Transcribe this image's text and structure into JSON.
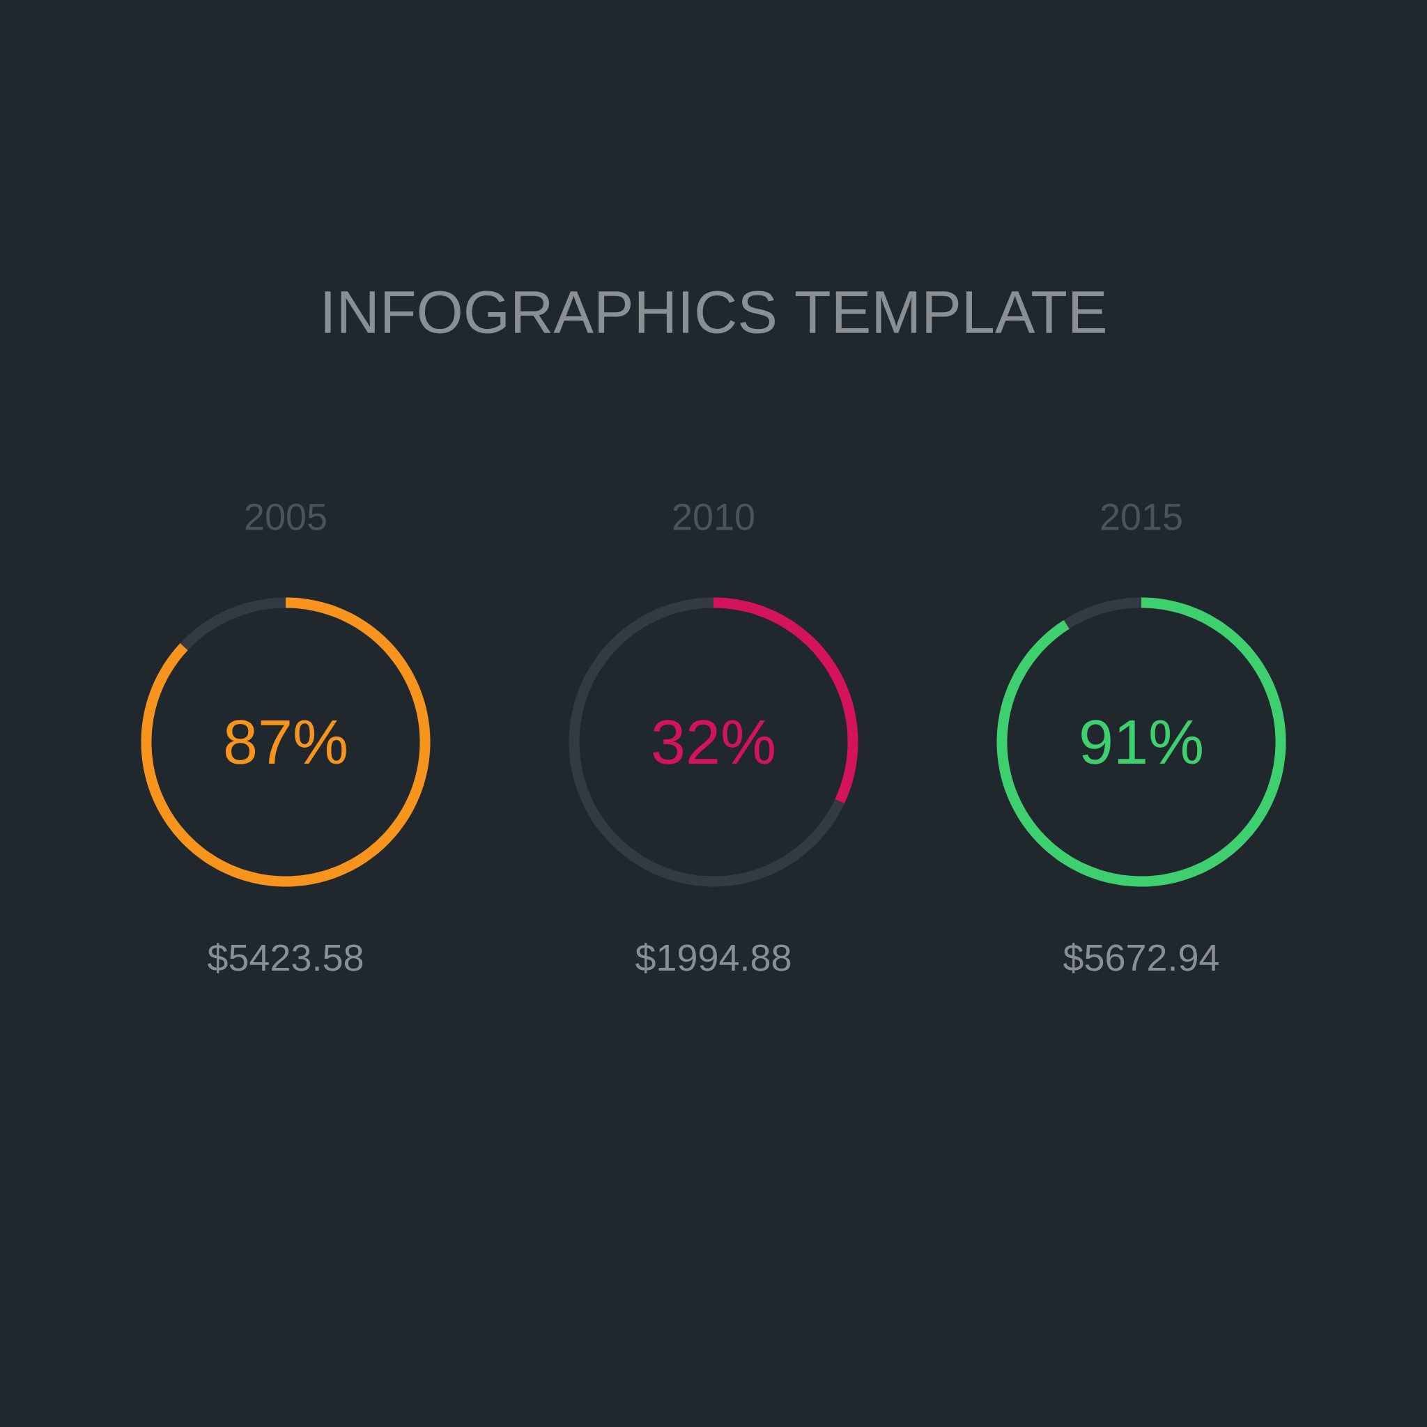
{
  "chart_data": [
    {
      "type": "other",
      "title": "INFOGRAPHICS   TEMPLATE"
    },
    {
      "type": "donut",
      "title": "2005",
      "categories": [
        null,
        null
      ],
      "values": [
        87,
        13
      ],
      "colors": [
        "#f7941d",
        "#343a42"
      ],
      "value_labels": [
        "87%",
        null
      ],
      "annotations": [
        "$5423.58"
      ]
    },
    {
      "type": "donut",
      "title": "2010",
      "categories": [
        null,
        null
      ],
      "values": [
        32,
        68
      ],
      "colors": [
        "#d4145a",
        "#343a42"
      ],
      "value_labels": [
        "32%",
        null
      ],
      "annotations": [
        "$1994.88"
      ]
    },
    {
      "type": "donut",
      "title": "2015",
      "categories": [
        null,
        null
      ],
      "values": [
        91,
        9
      ],
      "colors": [
        "#3ecf6e",
        "#343a42"
      ],
      "value_labels": [
        "91%",
        null
      ],
      "annotations": [
        "$5672.94"
      ]
    }
  ]
}
